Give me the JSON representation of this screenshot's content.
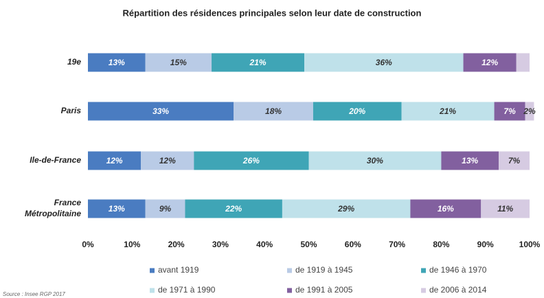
{
  "chart_data": {
    "type": "stacked-barh",
    "title": "Répartition des résidences principales selon leur date de construction",
    "categories": [
      "19e",
      "Paris",
      "Ile-de-France",
      "France Métropolitaine"
    ],
    "series": [
      {
        "name": "avant 1919",
        "color": "#4a7cc1",
        "values": [
          13,
          33,
          12,
          13
        ],
        "value_labels": [
          "13%",
          "33%",
          "12%",
          "13%"
        ]
      },
      {
        "name": "de 1919 à 1945",
        "color": "#b9cbe6",
        "values": [
          15,
          18,
          12,
          9
        ],
        "value_labels": [
          "15%",
          "18%",
          "12%",
          "9%"
        ]
      },
      {
        "name": "de 1946 à 1970",
        "color": "#3fa5b6",
        "values": [
          21,
          20,
          26,
          22
        ],
        "value_labels": [
          "21%",
          "20%",
          "26%",
          "22%"
        ]
      },
      {
        "name": "de 1971 à 1990",
        "color": "#bfe1ea",
        "values": [
          36,
          21,
          30,
          29
        ],
        "value_labels": [
          "36%",
          "21%",
          "30%",
          "29%"
        ]
      },
      {
        "name": "de 1991 à 2005",
        "color": "#82609f",
        "values": [
          12,
          7,
          13,
          16
        ],
        "value_labels": [
          "12%",
          "7%",
          "13%",
          "16%"
        ]
      },
      {
        "name": "de 2006 à 2014",
        "color": "#d6cbe2",
        "values": [
          3,
          2,
          7,
          11
        ],
        "value_labels": [
          null,
          "2%",
          "7%",
          "11%"
        ]
      }
    ],
    "xlim": [
      0,
      100
    ],
    "xticks": [
      {
        "value": 0,
        "label": "0%"
      },
      {
        "value": 10,
        "label": "10%"
      },
      {
        "value": 20,
        "label": "20%"
      },
      {
        "value": 30,
        "label": "30%"
      },
      {
        "value": 40,
        "label": "40%"
      },
      {
        "value": 50,
        "label": "50%"
      },
      {
        "value": 60,
        "label": "60%"
      },
      {
        "value": 70,
        "label": "70%"
      },
      {
        "value": 80,
        "label": "80%"
      },
      {
        "value": 90,
        "label": "90%"
      },
      {
        "value": 100,
        "label": "100%"
      }
    ],
    "source": "Source : Insee RGP 2017"
  }
}
